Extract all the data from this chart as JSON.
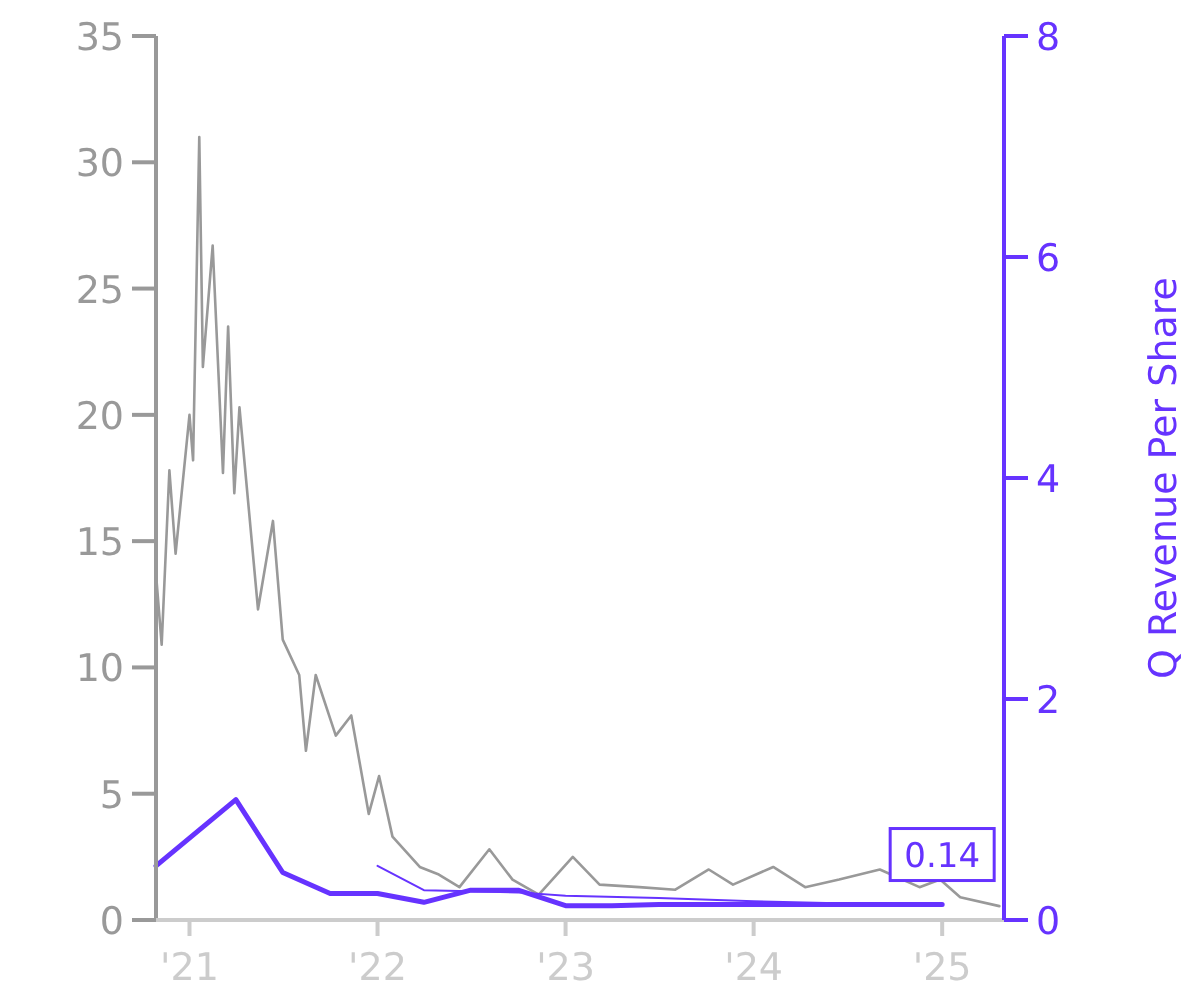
{
  "chart_data": {
    "type": "line",
    "y2label": "Q Revenue Per Share",
    "xlim": [
      "2020-10-28",
      "2025-05-01"
    ],
    "xticks": [
      {
        "value": "2021-01-01",
        "label": "'21"
      },
      {
        "value": "2022-01-01",
        "label": "'22"
      },
      {
        "value": "2023-01-01",
        "label": "'23"
      },
      {
        "value": "2024-01-01",
        "label": "'24"
      },
      {
        "value": "2025-01-01",
        "label": "'25"
      }
    ],
    "ylim": [
      0,
      35
    ],
    "yticks": [
      0,
      5,
      10,
      15,
      20,
      25,
      30,
      35
    ],
    "y2lim": [
      0,
      8
    ],
    "y2ticks": [
      0,
      2,
      4,
      6,
      8
    ],
    "grid": false,
    "marker": "none",
    "line_style": "solid",
    "series": [
      {
        "color": "#999999",
        "x": [
          "2020-10-28",
          "2020-11-08",
          "2020-11-23",
          "2020-12-05",
          "2021-01-01",
          "2021-01-08",
          "2021-01-20",
          "2021-01-27",
          "2021-02-15",
          "2021-03-07",
          "2021-03-17",
          "2021-03-29",
          "2021-04-08",
          "2021-05-14",
          "2021-06-12",
          "2021-07-01",
          "2021-08-02",
          "2021-08-15",
          "2021-09-03",
          "2021-10-12",
          "2021-11-11",
          "2021-12-15",
          "2022-01-04",
          "2022-01-30",
          "2022-03-24",
          "2022-04-30",
          "2022-06-09",
          "2022-08-06",
          "2022-09-20",
          "2022-11-10",
          "2023-01-15",
          "2023-03-08",
          "2023-05-24",
          "2023-08-02",
          "2023-10-06",
          "2023-11-22",
          "2024-02-08",
          "2024-04-10",
          "2024-06-15",
          "2024-09-02",
          "2024-11-18",
          "2024-12-28",
          "2025-02-05",
          "2025-04-22"
        ],
        "values": [
          13.7,
          10.9,
          17.8,
          14.5,
          20.0,
          18.2,
          31.0,
          21.9,
          26.7,
          17.7,
          23.5,
          16.9,
          20.3,
          12.3,
          15.8,
          11.1,
          9.7,
          6.7,
          9.7,
          7.3,
          8.1,
          4.2,
          5.7,
          3.3,
          2.1,
          1.8,
          1.3,
          2.8,
          1.6,
          1.0,
          2.5,
          1.4,
          1.3,
          1.2,
          2.0,
          1.4,
          2.1,
          1.3,
          1.6,
          2.0,
          1.3,
          1.6,
          0.9,
          0.55
        ]
      },
      {
        "color": "#6633ff",
        "axis": "y2",
        "x": [
          "2020-10-28",
          "2021-04-01",
          "2021-07-01",
          "2021-10-01",
          "2022-01-01",
          "2022-04-01",
          "2022-07-01",
          "2022-10-01",
          "2023-01-01",
          "2023-04-01",
          "2023-07-01",
          "2023-10-01",
          "2024-01-01",
          "2024-04-01",
          "2024-07-01",
          "2024-10-01",
          "2025-01-01"
        ],
        "values": [
          0.49,
          1.09,
          0.43,
          0.24,
          0.24,
          0.16,
          0.27,
          0.27,
          0.13,
          0.13,
          0.14,
          0.14,
          0.14,
          0.14,
          0.14,
          0.14,
          0.14
        ],
        "value_labels": [
          null,
          null,
          null,
          null,
          null,
          null,
          null,
          null,
          null,
          null,
          null,
          null,
          null,
          null,
          null,
          null,
          "0.14"
        ]
      },
      {
        "color": "#6633ff",
        "axis": "y2",
        "x": [
          "2022-01-01",
          "2022-04-01",
          "2022-07-01",
          "2022-10-01",
          "2023-01-01",
          "2023-07-01",
          "2024-01-01",
          "2024-07-01",
          "2025-01-01"
        ],
        "values": [
          0.49,
          0.27,
          0.26,
          0.25,
          0.22,
          0.2,
          0.17,
          0.15,
          0.14
        ]
      }
    ]
  }
}
